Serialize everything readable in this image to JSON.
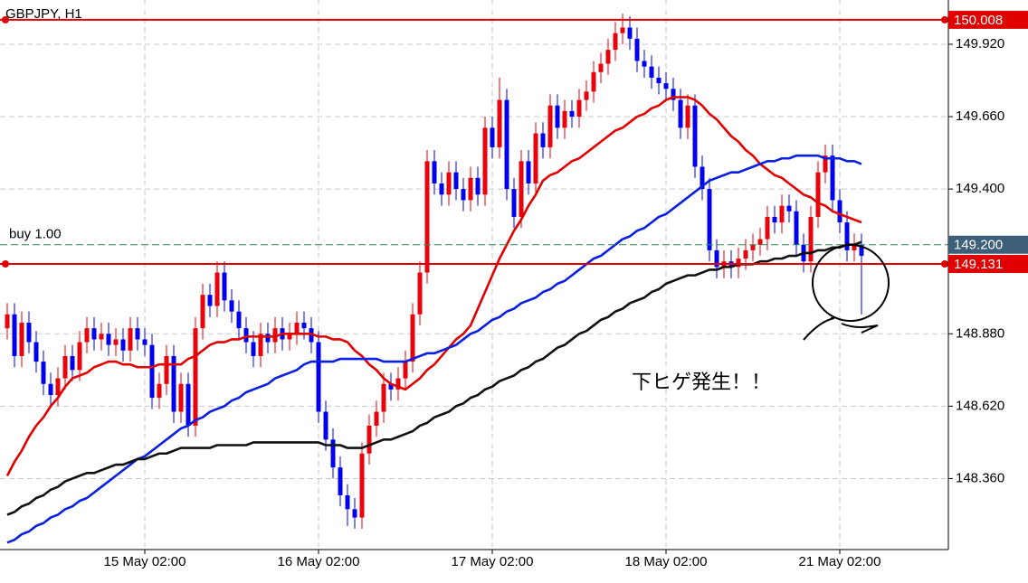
{
  "chart_data": {
    "type": "candlestick",
    "title": "GBPJPY, H1",
    "annotation": "下ヒゲ発生！！",
    "up_color": "#e8000b",
    "down_color": "#0000ee",
    "grid": true,
    "ylim": [
      148.105,
      150.079
    ],
    "yticks": [
      {
        "value": 149.92,
        "label": "149.920"
      },
      {
        "value": 149.66,
        "label": "149.660"
      },
      {
        "value": 149.4,
        "label": "149.400"
      },
      {
        "value": 148.88,
        "label": "148.880"
      },
      {
        "value": 148.62,
        "label": "148.620"
      },
      {
        "value": 148.36,
        "label": "148.360"
      }
    ],
    "hlines": [
      {
        "value": 150.008,
        "label": "150.008",
        "color": "#e00000",
        "chip": "#e00000"
      },
      {
        "value": 149.131,
        "label": "149.131",
        "color": "#e00000",
        "chip": "#e00000"
      },
      {
        "value": 149.2,
        "label": "149.200",
        "color": "#2e8b57",
        "chip": "#3d5f7a",
        "dash": true,
        "text": "buy 1.00"
      }
    ],
    "categories": [
      null,
      null,
      null,
      null,
      null,
      null,
      null,
      null,
      null,
      null,
      null,
      null,
      null,
      null,
      null,
      null,
      null,
      null,
      null,
      "15 May 02:00",
      null,
      null,
      null,
      null,
      null,
      null,
      null,
      null,
      null,
      null,
      null,
      null,
      null,
      null,
      null,
      null,
      null,
      null,
      null,
      null,
      null,
      null,
      null,
      "16 May 02:00",
      null,
      null,
      null,
      null,
      null,
      null,
      null,
      null,
      null,
      null,
      null,
      null,
      null,
      null,
      null,
      null,
      null,
      null,
      null,
      null,
      null,
      null,
      null,
      "17 May 02:00",
      null,
      null,
      null,
      null,
      null,
      null,
      null,
      null,
      null,
      null,
      null,
      null,
      null,
      null,
      null,
      null,
      null,
      null,
      null,
      null,
      null,
      null,
      null,
      "18 May 02:00",
      null,
      null,
      null,
      null,
      null,
      null,
      null,
      null,
      null,
      null,
      null,
      null,
      null,
      null,
      null,
      null,
      null,
      null,
      null,
      null,
      null,
      null,
      null,
      "21 May 02:00",
      null,
      null,
      null
    ],
    "open": [
      148.9,
      148.95,
      148.8,
      148.92,
      148.85,
      148.78,
      148.7,
      148.66,
      148.72,
      148.8,
      148.75,
      148.85,
      148.9,
      148.86,
      148.88,
      148.84,
      148.86,
      148.82,
      148.9,
      148.86,
      148.84,
      148.65,
      148.7,
      148.8,
      148.6,
      148.7,
      148.55,
      148.9,
      149.02,
      148.98,
      149.1,
      149.0,
      148.96,
      148.9,
      148.85,
      148.8,
      148.88,
      148.85,
      148.9,
      148.86,
      148.88,
      148.92,
      148.9,
      148.85,
      148.6,
      148.5,
      148.4,
      148.3,
      148.25,
      148.22,
      148.45,
      148.55,
      148.6,
      148.7,
      148.68,
      148.72,
      148.78,
      148.95,
      149.1,
      149.5,
      149.42,
      149.38,
      149.46,
      149.4,
      149.36,
      149.44,
      149.38,
      149.62,
      149.55,
      149.72,
      149.4,
      149.3,
      149.5,
      149.42,
      149.6,
      149.55,
      149.7,
      149.62,
      149.68,
      149.66,
      149.72,
      149.75,
      149.82,
      149.85,
      149.9,
      149.96,
      149.98,
      149.94,
      149.86,
      149.84,
      149.8,
      149.78,
      149.76,
      149.72,
      149.62,
      149.7,
      149.48,
      149.4,
      149.18,
      149.12,
      149.14,
      149.12,
      149.15,
      149.18,
      149.2,
      149.22,
      149.3,
      149.28,
      149.34,
      149.32,
      149.2,
      149.14,
      149.3,
      149.46,
      149.52,
      149.36,
      149.28,
      149.18,
      149.2
    ],
    "high": [
      148.99,
      148.99,
      148.96,
      148.96,
      148.89,
      148.82,
      148.74,
      148.76,
      148.84,
      148.84,
      148.89,
      148.94,
      148.94,
      148.92,
      148.92,
      148.9,
      148.9,
      148.94,
      148.94,
      148.9,
      148.88,
      148.74,
      148.84,
      148.84,
      148.74,
      148.74,
      148.94,
      149.06,
      149.06,
      149.14,
      149.14,
      149.04,
      149.0,
      148.94,
      148.89,
      148.92,
      148.92,
      148.94,
      148.94,
      148.92,
      148.96,
      148.96,
      148.94,
      148.89,
      148.64,
      148.54,
      148.44,
      148.34,
      148.29,
      148.49,
      148.59,
      148.64,
      148.74,
      148.74,
      148.76,
      148.82,
      148.99,
      149.14,
      149.54,
      149.54,
      149.46,
      149.5,
      149.5,
      149.44,
      149.48,
      149.48,
      149.66,
      149.66,
      149.8,
      149.76,
      149.44,
      149.54,
      149.54,
      149.64,
      149.64,
      149.74,
      149.74,
      149.72,
      149.72,
      149.76,
      149.79,
      149.86,
      149.89,
      149.94,
      150.0,
      150.03,
      150.02,
      149.98,
      149.9,
      149.88,
      149.84,
      149.82,
      149.8,
      149.76,
      149.74,
      149.74,
      149.52,
      149.44,
      149.22,
      149.18,
      149.18,
      149.19,
      149.22,
      149.24,
      149.26,
      149.34,
      149.34,
      149.38,
      149.38,
      149.36,
      149.24,
      149.34,
      149.5,
      149.56,
      149.56,
      149.4,
      149.32,
      149.24,
      149.24
    ],
    "low": [
      148.86,
      148.76,
      148.76,
      148.81,
      148.74,
      148.66,
      148.62,
      148.62,
      148.68,
      148.71,
      148.71,
      148.81,
      148.82,
      148.82,
      148.8,
      148.8,
      148.78,
      148.78,
      148.82,
      148.8,
      148.61,
      148.61,
      148.66,
      148.56,
      148.56,
      148.51,
      148.51,
      148.86,
      148.94,
      148.94,
      148.96,
      148.92,
      148.86,
      148.81,
      148.76,
      148.76,
      148.81,
      148.81,
      148.82,
      148.82,
      148.84,
      148.86,
      148.81,
      148.56,
      148.46,
      148.36,
      148.26,
      148.19,
      148.18,
      148.18,
      148.41,
      148.51,
      148.56,
      148.64,
      148.64,
      148.68,
      148.74,
      148.91,
      149.06,
      149.38,
      149.34,
      149.34,
      149.36,
      149.32,
      149.32,
      149.34,
      149.34,
      149.51,
      149.51,
      149.36,
      149.26,
      149.26,
      149.38,
      149.38,
      149.51,
      149.51,
      149.58,
      149.58,
      149.62,
      149.62,
      149.68,
      149.71,
      149.78,
      149.81,
      149.86,
      149.92,
      149.9,
      149.82,
      149.8,
      149.76,
      149.74,
      149.72,
      149.68,
      149.58,
      149.58,
      149.44,
      149.36,
      149.14,
      149.08,
      149.08,
      149.08,
      149.08,
      149.11,
      149.14,
      149.16,
      149.18,
      149.24,
      149.24,
      149.28,
      149.16,
      149.1,
      149.1,
      149.26,
      149.42,
      149.32,
      149.24,
      149.14,
      149.14,
      148.95
    ],
    "close": [
      148.95,
      148.8,
      148.92,
      148.85,
      148.78,
      148.7,
      148.66,
      148.72,
      148.8,
      148.75,
      148.85,
      148.9,
      148.86,
      148.88,
      148.84,
      148.86,
      148.82,
      148.9,
      148.86,
      148.84,
      148.65,
      148.7,
      148.8,
      148.6,
      148.7,
      148.55,
      148.9,
      149.02,
      148.98,
      149.1,
      149.0,
      148.96,
      148.9,
      148.85,
      148.8,
      148.88,
      148.85,
      148.9,
      148.86,
      148.88,
      148.92,
      148.9,
      148.85,
      148.6,
      148.5,
      148.4,
      148.3,
      148.25,
      148.22,
      148.45,
      148.55,
      148.6,
      148.7,
      148.68,
      148.72,
      148.78,
      148.95,
      149.1,
      149.5,
      149.42,
      149.38,
      149.46,
      149.4,
      149.36,
      149.44,
      149.38,
      149.62,
      149.55,
      149.72,
      149.4,
      149.3,
      149.5,
      149.42,
      149.6,
      149.55,
      149.7,
      149.62,
      149.68,
      149.66,
      149.72,
      149.75,
      149.82,
      149.85,
      149.9,
      149.96,
      149.98,
      149.94,
      149.86,
      149.84,
      149.8,
      149.78,
      149.76,
      149.72,
      149.62,
      149.7,
      149.48,
      149.4,
      149.18,
      149.12,
      149.14,
      149.12,
      149.15,
      149.18,
      149.2,
      149.22,
      149.3,
      149.28,
      149.34,
      149.32,
      149.2,
      149.14,
      149.3,
      149.46,
      149.52,
      149.36,
      149.28,
      149.18,
      149.2,
      149.16
    ],
    "series": [
      {
        "color": "#e00000",
        "values": [
          148.37,
          148.42,
          148.46,
          148.51,
          148.55,
          148.58,
          148.62,
          148.65,
          148.69,
          148.72,
          148.73,
          148.74,
          148.76,
          148.77,
          148.78,
          148.78,
          148.77,
          148.77,
          148.76,
          148.76,
          148.76,
          148.77,
          148.77,
          148.77,
          148.77,
          148.79,
          148.8,
          148.82,
          148.84,
          148.85,
          148.85,
          148.86,
          148.86,
          148.87,
          148.87,
          148.87,
          148.87,
          148.87,
          148.88,
          148.88,
          148.88,
          148.88,
          148.88,
          148.87,
          148.87,
          148.86,
          148.86,
          148.85,
          148.82,
          148.8,
          148.77,
          148.75,
          148.72,
          148.7,
          148.69,
          148.68,
          148.7,
          148.72,
          148.75,
          148.77,
          148.8,
          148.83,
          148.86,
          148.88,
          148.91,
          148.97,
          149.03,
          149.09,
          149.15,
          149.2,
          149.25,
          149.29,
          149.34,
          149.38,
          149.43,
          149.45,
          149.46,
          149.48,
          149.5,
          149.51,
          149.53,
          149.55,
          149.57,
          149.59,
          149.61,
          149.62,
          149.64,
          149.66,
          149.67,
          149.69,
          149.7,
          149.72,
          149.73,
          149.73,
          149.73,
          149.72,
          149.7,
          149.67,
          149.65,
          149.62,
          149.59,
          149.57,
          149.54,
          149.52,
          149.49,
          149.47,
          149.45,
          149.44,
          149.42,
          149.4,
          149.38,
          149.37,
          149.35,
          149.34,
          149.32,
          149.31,
          149.3,
          149.29,
          149.28
        ]
      },
      {
        "color": "#0a1fe0",
        "values": [
          148.13,
          148.14,
          148.16,
          148.17,
          148.19,
          148.2,
          148.22,
          148.23,
          148.25,
          148.26,
          148.28,
          148.29,
          148.31,
          148.33,
          148.35,
          148.37,
          148.39,
          148.41,
          148.43,
          148.44,
          148.46,
          148.48,
          148.5,
          148.52,
          148.54,
          148.55,
          148.57,
          148.58,
          148.6,
          148.61,
          148.62,
          148.64,
          148.65,
          148.67,
          148.68,
          148.69,
          148.7,
          148.72,
          148.73,
          148.74,
          148.75,
          148.77,
          148.78,
          148.78,
          148.78,
          148.78,
          148.79,
          148.79,
          148.79,
          148.79,
          148.79,
          148.79,
          148.78,
          148.78,
          148.78,
          148.78,
          148.79,
          148.8,
          148.81,
          148.81,
          148.82,
          148.83,
          148.84,
          148.86,
          148.88,
          148.89,
          148.91,
          148.93,
          148.94,
          148.96,
          148.97,
          148.99,
          149.0,
          149.01,
          149.03,
          149.04,
          149.06,
          149.07,
          149.09,
          149.11,
          149.13,
          149.15,
          149.16,
          149.18,
          149.2,
          149.22,
          149.23,
          149.25,
          149.26,
          149.28,
          149.3,
          149.31,
          149.33,
          149.35,
          149.37,
          149.39,
          149.41,
          149.43,
          149.44,
          149.45,
          149.46,
          149.46,
          149.47,
          149.48,
          149.49,
          149.5,
          149.5,
          149.51,
          149.51,
          149.52,
          149.52,
          149.52,
          149.52,
          149.51,
          149.51,
          149.51,
          149.5,
          149.5,
          149.49
        ]
      },
      {
        "color": "#111111",
        "values": [
          148.23,
          148.24,
          148.26,
          148.27,
          148.29,
          148.3,
          148.32,
          148.33,
          148.35,
          148.36,
          148.37,
          148.38,
          148.38,
          148.39,
          148.4,
          148.41,
          148.41,
          148.42,
          148.43,
          148.43,
          148.44,
          148.45,
          148.45,
          148.46,
          148.47,
          148.47,
          148.47,
          148.47,
          148.47,
          148.48,
          148.48,
          148.48,
          148.48,
          148.48,
          148.49,
          148.49,
          148.49,
          148.49,
          148.49,
          148.49,
          148.49,
          148.49,
          148.49,
          148.49,
          148.48,
          148.48,
          148.48,
          148.47,
          148.47,
          148.47,
          148.48,
          148.49,
          148.5,
          148.5,
          148.51,
          148.52,
          148.53,
          148.55,
          148.56,
          148.58,
          148.59,
          148.6,
          148.62,
          148.63,
          148.65,
          148.66,
          148.68,
          148.69,
          148.71,
          148.72,
          148.73,
          148.75,
          148.76,
          148.78,
          148.79,
          148.81,
          148.83,
          148.84,
          148.86,
          148.88,
          148.89,
          148.91,
          148.93,
          148.94,
          148.96,
          148.97,
          148.99,
          149.0,
          149.01,
          149.03,
          149.04,
          149.06,
          149.07,
          149.08,
          149.09,
          149.09,
          149.1,
          149.11,
          149.11,
          149.12,
          149.12,
          149.13,
          149.13,
          149.13,
          149.14,
          149.14,
          149.15,
          149.15,
          149.16,
          149.16,
          149.17,
          149.17,
          149.18,
          149.18,
          149.19,
          149.19,
          149.2,
          149.2,
          149.21
        ]
      }
    ]
  }
}
